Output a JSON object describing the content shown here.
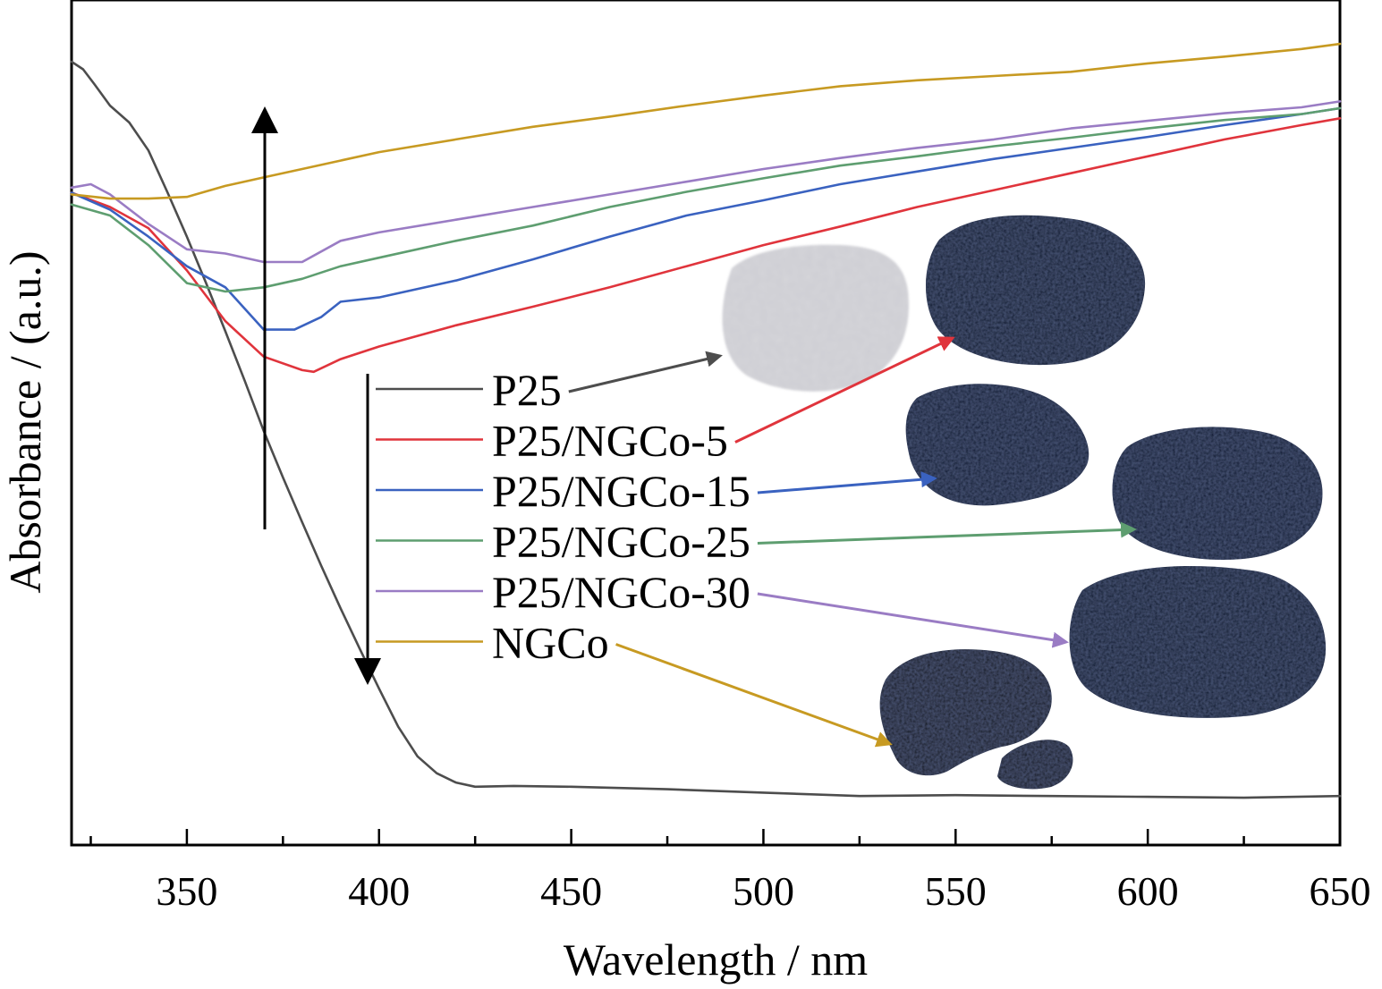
{
  "chart_data": {
    "type": "line",
    "xlabel": "Wavelength / nm",
    "ylabel": "Absorbance / (a.u.)",
    "xlim": [
      320,
      650
    ],
    "ylim": [
      0,
      1
    ],
    "x_ticks": [
      350,
      400,
      450,
      500,
      550,
      600,
      650
    ],
    "x_minor_step": 25,
    "y_ticks_labeled": false,
    "grid": false,
    "legend_position": "center",
    "series": [
      {
        "name": "P25",
        "color": "#4d4d4d",
        "points": [
          [
            320,
            0.927
          ],
          [
            323,
            0.918
          ],
          [
            326,
            0.9
          ],
          [
            330,
            0.875
          ],
          [
            335,
            0.855
          ],
          [
            340,
            0.822
          ],
          [
            345,
            0.772
          ],
          [
            350,
            0.72
          ],
          [
            355,
            0.665
          ],
          [
            360,
            0.608
          ],
          [
            365,
            0.55
          ],
          [
            370,
            0.49
          ],
          [
            375,
            0.435
          ],
          [
            380,
            0.382
          ],
          [
            385,
            0.33
          ],
          [
            390,
            0.28
          ],
          [
            395,
            0.232
          ],
          [
            400,
            0.185
          ],
          [
            405,
            0.14
          ],
          [
            410,
            0.105
          ],
          [
            415,
            0.085
          ],
          [
            420,
            0.074
          ],
          [
            425,
            0.069
          ],
          [
            435,
            0.07
          ],
          [
            450,
            0.069
          ],
          [
            475,
            0.066
          ],
          [
            500,
            0.062
          ],
          [
            525,
            0.058
          ],
          [
            550,
            0.059
          ],
          [
            575,
            0.058
          ],
          [
            600,
            0.057
          ],
          [
            625,
            0.056
          ],
          [
            650,
            0.058
          ]
        ]
      },
      {
        "name": "P25/NGCo-5",
        "color": "#e0343c",
        "points": [
          [
            320,
            0.772
          ],
          [
            330,
            0.755
          ],
          [
            340,
            0.73
          ],
          [
            350,
            0.68
          ],
          [
            360,
            0.62
          ],
          [
            370,
            0.578
          ],
          [
            380,
            0.562
          ],
          [
            383,
            0.56
          ],
          [
            390,
            0.575
          ],
          [
            400,
            0.59
          ],
          [
            420,
            0.615
          ],
          [
            440,
            0.637
          ],
          [
            460,
            0.66
          ],
          [
            480,
            0.685
          ],
          [
            500,
            0.71
          ],
          [
            520,
            0.732
          ],
          [
            540,
            0.755
          ],
          [
            560,
            0.775
          ],
          [
            580,
            0.795
          ],
          [
            600,
            0.815
          ],
          [
            620,
            0.835
          ],
          [
            640,
            0.852
          ],
          [
            650,
            0.86
          ]
        ]
      },
      {
        "name": "P25/NGCo-15",
        "color": "#3a62c0",
        "points": [
          [
            320,
            0.772
          ],
          [
            330,
            0.752
          ],
          [
            340,
            0.72
          ],
          [
            350,
            0.685
          ],
          [
            360,
            0.66
          ],
          [
            370,
            0.61
          ],
          [
            378,
            0.61
          ],
          [
            385,
            0.625
          ],
          [
            390,
            0.643
          ],
          [
            400,
            0.648
          ],
          [
            420,
            0.668
          ],
          [
            440,
            0.693
          ],
          [
            460,
            0.72
          ],
          [
            480,
            0.745
          ],
          [
            500,
            0.763
          ],
          [
            520,
            0.782
          ],
          [
            540,
            0.797
          ],
          [
            560,
            0.812
          ],
          [
            580,
            0.825
          ],
          [
            600,
            0.838
          ],
          [
            620,
            0.852
          ],
          [
            640,
            0.865
          ],
          [
            650,
            0.872
          ]
        ]
      },
      {
        "name": "P25/NGCo-25",
        "color": "#5e9e70",
        "points": [
          [
            320,
            0.758
          ],
          [
            330,
            0.745
          ],
          [
            340,
            0.71
          ],
          [
            350,
            0.665
          ],
          [
            360,
            0.655
          ],
          [
            370,
            0.66
          ],
          [
            380,
            0.67
          ],
          [
            390,
            0.685
          ],
          [
            400,
            0.695
          ],
          [
            420,
            0.715
          ],
          [
            440,
            0.733
          ],
          [
            460,
            0.755
          ],
          [
            480,
            0.773
          ],
          [
            500,
            0.789
          ],
          [
            520,
            0.804
          ],
          [
            540,
            0.815
          ],
          [
            560,
            0.827
          ],
          [
            580,
            0.837
          ],
          [
            600,
            0.848
          ],
          [
            620,
            0.858
          ],
          [
            640,
            0.865
          ],
          [
            650,
            0.872
          ]
        ]
      },
      {
        "name": "P25/NGCo-30",
        "color": "#9a7cc4",
        "points": [
          [
            320,
            0.778
          ],
          [
            325,
            0.782
          ],
          [
            330,
            0.77
          ],
          [
            340,
            0.735
          ],
          [
            350,
            0.705
          ],
          [
            360,
            0.7
          ],
          [
            370,
            0.69
          ],
          [
            380,
            0.69
          ],
          [
            390,
            0.715
          ],
          [
            400,
            0.725
          ],
          [
            420,
            0.74
          ],
          [
            440,
            0.755
          ],
          [
            460,
            0.77
          ],
          [
            480,
            0.785
          ],
          [
            500,
            0.8
          ],
          [
            520,
            0.813
          ],
          [
            540,
            0.825
          ],
          [
            560,
            0.835
          ],
          [
            580,
            0.848
          ],
          [
            600,
            0.857
          ],
          [
            620,
            0.866
          ],
          [
            640,
            0.873
          ],
          [
            650,
            0.88
          ]
        ]
      },
      {
        "name": "NGCo",
        "color": "#c79a22",
        "points": [
          [
            320,
            0.77
          ],
          [
            330,
            0.765
          ],
          [
            340,
            0.765
          ],
          [
            350,
            0.767
          ],
          [
            360,
            0.78
          ],
          [
            370,
            0.79
          ],
          [
            380,
            0.8
          ],
          [
            400,
            0.82
          ],
          [
            420,
            0.835
          ],
          [
            440,
            0.85
          ],
          [
            460,
            0.862
          ],
          [
            480,
            0.875
          ],
          [
            500,
            0.887
          ],
          [
            520,
            0.898
          ],
          [
            540,
            0.905
          ],
          [
            560,
            0.91
          ],
          [
            580,
            0.915
          ],
          [
            600,
            0.925
          ],
          [
            620,
            0.933
          ],
          [
            640,
            0.942
          ],
          [
            650,
            0.948
          ]
        ]
      }
    ]
  }
}
